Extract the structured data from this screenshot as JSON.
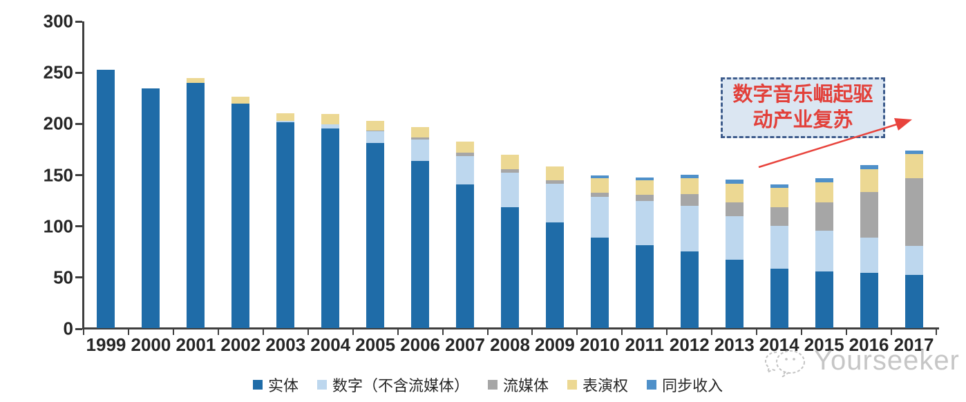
{
  "chart_data": {
    "type": "bar",
    "stacked": true,
    "title": "",
    "xlabel": "",
    "ylabel": "",
    "categories": [
      "1999",
      "2000",
      "2001",
      "2002",
      "2003",
      "2004",
      "2005",
      "2006",
      "2007",
      "2008",
      "2009",
      "2010",
      "2011",
      "2012",
      "2013",
      "2014",
      "2015",
      "2016",
      "2017"
    ],
    "series": [
      {
        "name": "实体",
        "color": "#1f6ca8",
        "values": [
          252,
          234,
          239,
          219,
          201,
          195,
          181,
          163,
          140,
          118,
          103,
          88,
          81,
          75,
          67,
          58,
          55,
          54,
          52
        ]
      },
      {
        "name": "数字（不含流媒体）",
        "color": "#bdd7ee",
        "values": [
          0,
          0,
          0,
          0,
          1,
          4,
          11,
          21,
          28,
          34,
          38,
          40,
          43,
          44,
          42,
          42,
          40,
          34,
          28
        ]
      },
      {
        "name": "流媒体",
        "color": "#a6a6a6",
        "values": [
          0,
          0,
          0,
          0,
          0,
          0,
          1,
          2,
          3,
          3,
          3,
          4,
          6,
          12,
          14,
          18,
          28,
          45,
          66
        ]
      },
      {
        "name": "表演权",
        "color": "#ecd893",
        "values": [
          0,
          0,
          5,
          7,
          8,
          10,
          9,
          10,
          11,
          14,
          14,
          14,
          14,
          15,
          18,
          19,
          19,
          22,
          24
        ]
      },
      {
        "name": "同步收入",
        "color": "#4f90c9",
        "values": [
          0,
          0,
          0,
          0,
          0,
          0,
          0,
          0,
          0,
          0,
          0,
          3,
          3,
          4,
          4,
          3,
          4,
          4,
          3
        ]
      }
    ],
    "ylim": [
      0,
      300
    ],
    "yticks": [
      0,
      50,
      100,
      150,
      200,
      250,
      300
    ],
    "grid": false,
    "legend_position": "bottom"
  },
  "annotation": {
    "text": "数字音乐崛起驱动产业复苏",
    "lines": [
      "数字音乐崛起驱",
      "动产业复苏"
    ],
    "border_color": "#3e5c8c",
    "fill_color": "#dbe6f2",
    "text_color": "#e2403a",
    "arrow_color": "#e8433c"
  },
  "watermark": {
    "text": "Yourseeker",
    "color": "#c6c6c6",
    "icon": "chat-bubbles-icon"
  }
}
